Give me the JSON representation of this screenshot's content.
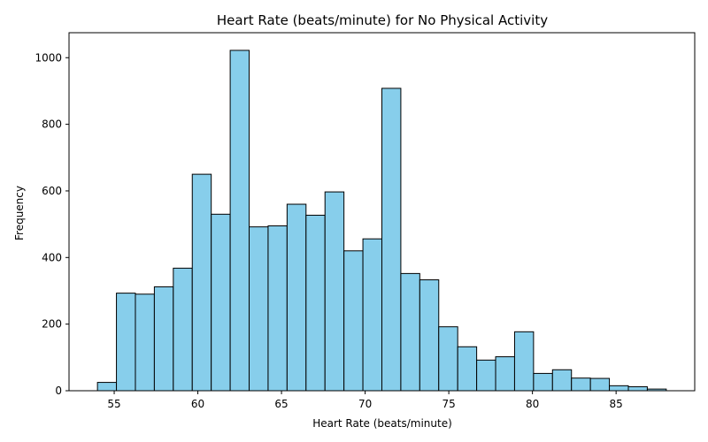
{
  "chart_data": {
    "type": "bar",
    "title": "Heart Rate (beats/minute) for No Physical Activity",
    "xlabel": "Heart Rate (beats/minute)",
    "ylabel": "Frequency",
    "xlim": [
      52.3,
      89.7
    ],
    "ylim": [
      0,
      1075
    ],
    "x_ticks": [
      55,
      60,
      65,
      70,
      75,
      80,
      85
    ],
    "y_ticks": [
      0,
      200,
      400,
      600,
      800,
      1000
    ],
    "bin_start": 54,
    "bin_width": 1.1333,
    "values": [
      25,
      293,
      290,
      312,
      368,
      650,
      530,
      1022,
      492,
      495,
      560,
      527,
      597,
      420,
      456,
      908,
      352,
      333,
      192,
      132,
      92,
      102,
      177,
      52,
      63,
      38,
      37,
      15,
      12,
      5
    ],
    "bar_color": "#87ceeb",
    "edge_color": "#000000",
    "grid": false,
    "legend": "none"
  }
}
